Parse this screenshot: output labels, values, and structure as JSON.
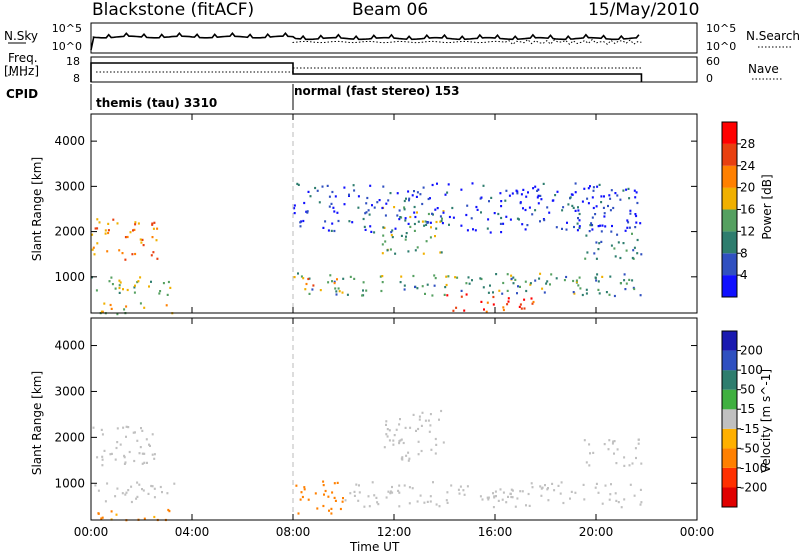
{
  "header": {
    "station": "Blackstone (fitACF)",
    "beam": "Beam 06",
    "date": "15/May/2010"
  },
  "panels": {
    "nsky_label": "N.Sky",
    "freq_label_line1": "Freq.",
    "freq_label_line2": "[MHz]",
    "cpid_label": "CPID",
    "nsearch_label": "N.Search",
    "nave_label": "Nave",
    "nsky_ticks": [
      "10^5",
      "10^0"
    ],
    "nsearch_ticks": [
      "10^5",
      "10^0"
    ],
    "freq_ticks": [
      "18",
      "8"
    ],
    "nave_ticks": [
      "60",
      "0"
    ],
    "cpid_segments": [
      {
        "label": "themis (tau) 3310",
        "start_hour": 0.0,
        "end_hour": 8.0
      },
      {
        "label": "normal (fast stereo) 153",
        "start_hour": 8.0,
        "end_hour": 22.0
      }
    ]
  },
  "axes": {
    "xlabel": "Time UT",
    "x_ticks": [
      "00:00",
      "04:00",
      "08:00",
      "12:00",
      "16:00",
      "20:00",
      "00:00"
    ],
    "ylabel": "Slant Range [km]",
    "y_ticks": [
      "1000",
      "2000",
      "3000",
      "4000"
    ]
  },
  "colorbars": {
    "power": {
      "label": "Power [dB]",
      "ticks": [
        "4",
        "8",
        "12",
        "16",
        "20",
        "24",
        "28"
      ],
      "colors": [
        "#1010ff",
        "#3050c0",
        "#2e7d6e",
        "#55a060",
        "#f0b000",
        "#ff8000",
        "#e84010",
        "#ff0000"
      ]
    },
    "velocity": {
      "label": "Velocity [m s^-1]",
      "ticks": [
        "200",
        "100",
        "50",
        "15",
        "-15",
        "-50",
        "-100",
        "-200"
      ],
      "colors": [
        "#1a1ab0",
        "#2f50c0",
        "#2e7d6e",
        "#40b040",
        "#c0c0c0",
        "#ffb000",
        "#ff8000",
        "#ff3000",
        "#e00000"
      ]
    }
  },
  "chart_data": {
    "type": "heatmap",
    "title": "Blackstone (fitACF)",
    "xlabel": "Time UT",
    "ylabel": "Slant Range [km]",
    "xlim": [
      0,
      24
    ],
    "ylim": [
      200,
      4600
    ],
    "data_gap": [
      3.3,
      8.0
    ],
    "power_regions": [
      {
        "t0": 0.0,
        "t1": 3.3,
        "r0": 600,
        "r1": 1050,
        "power_db": 14
      },
      {
        "t0": 0.0,
        "t1": 2.7,
        "r0": 1400,
        "r1": 2300,
        "power_db": 22
      },
      {
        "t0": 0.0,
        "t1": 3.2,
        "r0": 200,
        "r1": 450,
        "power_db": 18
      },
      {
        "t0": 8.0,
        "t1": 21.8,
        "r0": 600,
        "r1": 1100,
        "power_db": 12
      },
      {
        "t0": 8.3,
        "t1": 10.0,
        "r0": 650,
        "r1": 1000,
        "power_db": 20
      },
      {
        "t0": 14.0,
        "t1": 17.5,
        "r0": 250,
        "r1": 650,
        "power_db": 27
      },
      {
        "t0": 11.5,
        "t1": 14.0,
        "r0": 1500,
        "r1": 2600,
        "power_db": 14
      },
      {
        "t0": 19.5,
        "t1": 21.8,
        "r0": 1400,
        "r1": 2000,
        "power_db": 10
      },
      {
        "t0": 8.0,
        "t1": 21.8,
        "r0": 2000,
        "r1": 3100,
        "power_db": 4
      }
    ],
    "velocity_regions": [
      {
        "t0": 0.0,
        "t1": 3.3,
        "r0": 600,
        "r1": 1050,
        "velocity": 0
      },
      {
        "t0": 0.0,
        "t1": 2.7,
        "r0": 1400,
        "r1": 2300,
        "velocity": 0
      },
      {
        "t0": 0.0,
        "t1": 3.2,
        "r0": 200,
        "r1": 450,
        "velocity": -60
      },
      {
        "t0": 8.0,
        "t1": 10.0,
        "r0": 350,
        "r1": 1100,
        "velocity": -70
      },
      {
        "t0": 10.0,
        "t1": 21.8,
        "r0": 500,
        "r1": 1050,
        "velocity": 0
      },
      {
        "t0": 11.5,
        "t1": 14.0,
        "r0": 1500,
        "r1": 2600,
        "velocity": 0
      },
      {
        "t0": 19.5,
        "t1": 21.8,
        "r0": 1400,
        "r1": 2000,
        "velocity": 0
      }
    ]
  }
}
